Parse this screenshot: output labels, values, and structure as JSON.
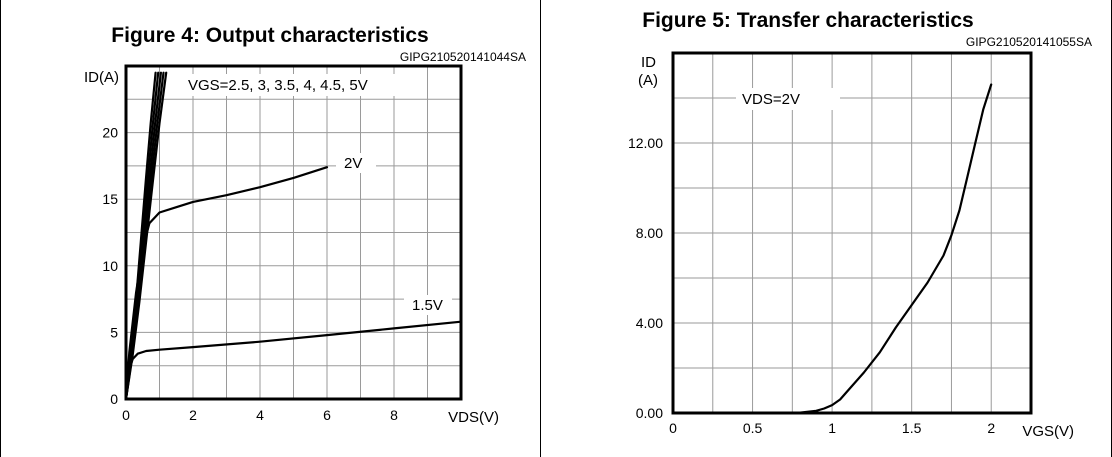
{
  "chart_data": [
    {
      "type": "line",
      "title": "Figure 4: Output characteristics",
      "code": "GIPG210520141044SA",
      "ylabel": "ID(A)",
      "xlabel": "VDS(V)",
      "xlim": [
        0,
        10
      ],
      "ylim": [
        0,
        25
      ],
      "x_ticks": [
        "0",
        "2",
        "4",
        "6",
        "8"
      ],
      "y_ticks": [
        "0",
        "5",
        "10",
        "15",
        "20"
      ],
      "grid": true,
      "series": [
        {
          "name": "VGS=2.5, 3, 3.5, 4, 4.5, 5V",
          "x": [
            0,
            0.2,
            0.4,
            0.6,
            0.8,
            1.0,
            1.2
          ],
          "y": [
            0,
            3.3,
            7.3,
            11.8,
            16.3,
            20.7,
            24.5
          ]
        },
        {
          "name": "2V",
          "x": [
            0,
            0.1,
            0.3,
            0.5,
            0.7,
            1.0,
            1.5,
            2.0,
            3.0,
            4.0,
            5.0,
            6.0
          ],
          "y": [
            0,
            3.5,
            8.0,
            11.3,
            13.2,
            14.0,
            14.4,
            14.8,
            15.3,
            15.9,
            16.6,
            17.4
          ]
        },
        {
          "name": "1.5V",
          "x": [
            0,
            0.1,
            0.2,
            0.35,
            0.6,
            1.0,
            2.0,
            4.0,
            6.0,
            8.0,
            10.0
          ],
          "y": [
            0,
            2.2,
            3.0,
            3.4,
            3.6,
            3.7,
            3.9,
            4.3,
            4.8,
            5.3,
            5.8
          ]
        }
      ],
      "annotations": [
        {
          "text": "VGS=2.5, 3, 3.5, 4, 4.5, 5V"
        },
        {
          "text": "2V"
        },
        {
          "text": "1.5V"
        }
      ]
    },
    {
      "type": "line",
      "title": "Figure 5: Transfer characteristics",
      "code": "GIPG210520141055SA",
      "ylabel_line1": "ID",
      "ylabel_line2": "(A)",
      "xlabel": "VGS(V)",
      "xlim": [
        0,
        2.25
      ],
      "ylim": [
        0,
        16
      ],
      "x_ticks": [
        "0",
        "0.5",
        "1",
        "1.5",
        "2"
      ],
      "y_ticks": [
        "0.00",
        "4.00",
        "8.00",
        "12.00"
      ],
      "grid": true,
      "series": [
        {
          "x": [
            0,
            0.5,
            0.7,
            0.8,
            0.9,
            0.95,
            1.0,
            1.05,
            1.1,
            1.2,
            1.3,
            1.4,
            1.5,
            1.6,
            1.7,
            1.75,
            1.8,
            1.85,
            1.9,
            1.95,
            2.0
          ],
          "y": [
            0,
            0,
            0,
            0.02,
            0.1,
            0.2,
            0.35,
            0.6,
            1.0,
            1.8,
            2.7,
            3.8,
            4.8,
            5.8,
            7.0,
            7.9,
            9.0,
            10.5,
            12.0,
            13.5,
            14.6
          ]
        }
      ],
      "annotations": [
        {
          "text": "VDS=2V"
        }
      ]
    }
  ]
}
